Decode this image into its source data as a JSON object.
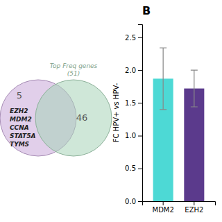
{
  "chart_data": [
    {
      "type": "venn",
      "series": [
        {
          "color": "#C8A8D8",
          "values": [
            5
          ]
        },
        {
          "name": "Top Freq genes\n(51)",
          "color": "#A8D4B8",
          "values": [
            46
          ]
        }
      ],
      "annotations": [
        "EZH2",
        "MDM2",
        "CCNA",
        "STAT5A",
        "TYMS"
      ],
      "data_labels": true
    },
    {
      "type": "bar",
      "title": "B",
      "categories": [
        "MDM2",
        "EZH2"
      ],
      "values": [
        1.87,
        1.72
      ],
      "errors": [
        0.47,
        0.28
      ],
      "colors": [
        "#4DD9D5",
        "#5B3A8C"
      ],
      "ylabel": "FC HPV+ vs HPV-",
      "ylim": [
        0,
        2.7
      ],
      "yticks": [
        {
          "value": 0.0,
          "label": "0.0"
        },
        {
          "value": 0.5,
          "label": "0.5"
        },
        {
          "value": 1.0,
          "label": "1.0"
        },
        {
          "value": 1.5,
          "label": "1.5"
        },
        {
          "value": 2.0,
          "label": "2.0"
        },
        {
          "value": 2.5,
          "label": "2.5"
        }
      ]
    }
  ]
}
